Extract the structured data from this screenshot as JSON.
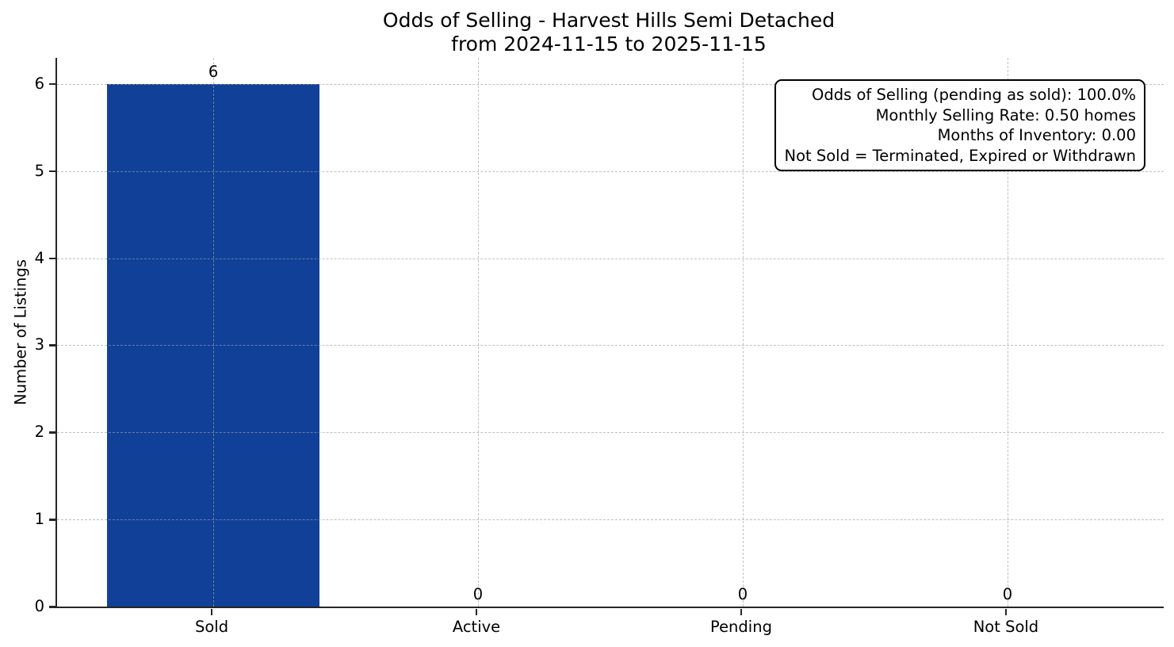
{
  "chart_data": {
    "type": "bar",
    "title": "Odds of Selling - Harvest Hills Semi Detached",
    "subtitle": "from 2024-11-15 to 2025-11-15",
    "categories": [
      "Sold",
      "Active",
      "Pending",
      "Not Sold"
    ],
    "values": [
      6,
      0,
      0,
      0
    ],
    "bar_value_labels": [
      "6",
      "0",
      "0",
      "0"
    ],
    "xlabel": "",
    "ylabel": "Number of Listings",
    "ylim": [
      0,
      6.3
    ],
    "yticks": [
      0,
      1,
      2,
      3,
      4,
      5,
      6
    ],
    "grid": "dashed, both axes, drawn over bars",
    "legend_position": "none",
    "bar_color": "#104098",
    "grid_color": "#a0a0a0",
    "axis_color": "#262626",
    "text_color": "#000000",
    "annotation_box": {
      "position": "top-right",
      "text_align": "right",
      "border_color": "#000000",
      "lines": [
        "Odds of Selling (pending as sold): 100.0%",
        "Monthly Selling Rate: 0.50 homes",
        "Months of Inventory: 0.00",
        "Not Sold = Terminated, Expired or Withdrawn"
      ]
    }
  }
}
